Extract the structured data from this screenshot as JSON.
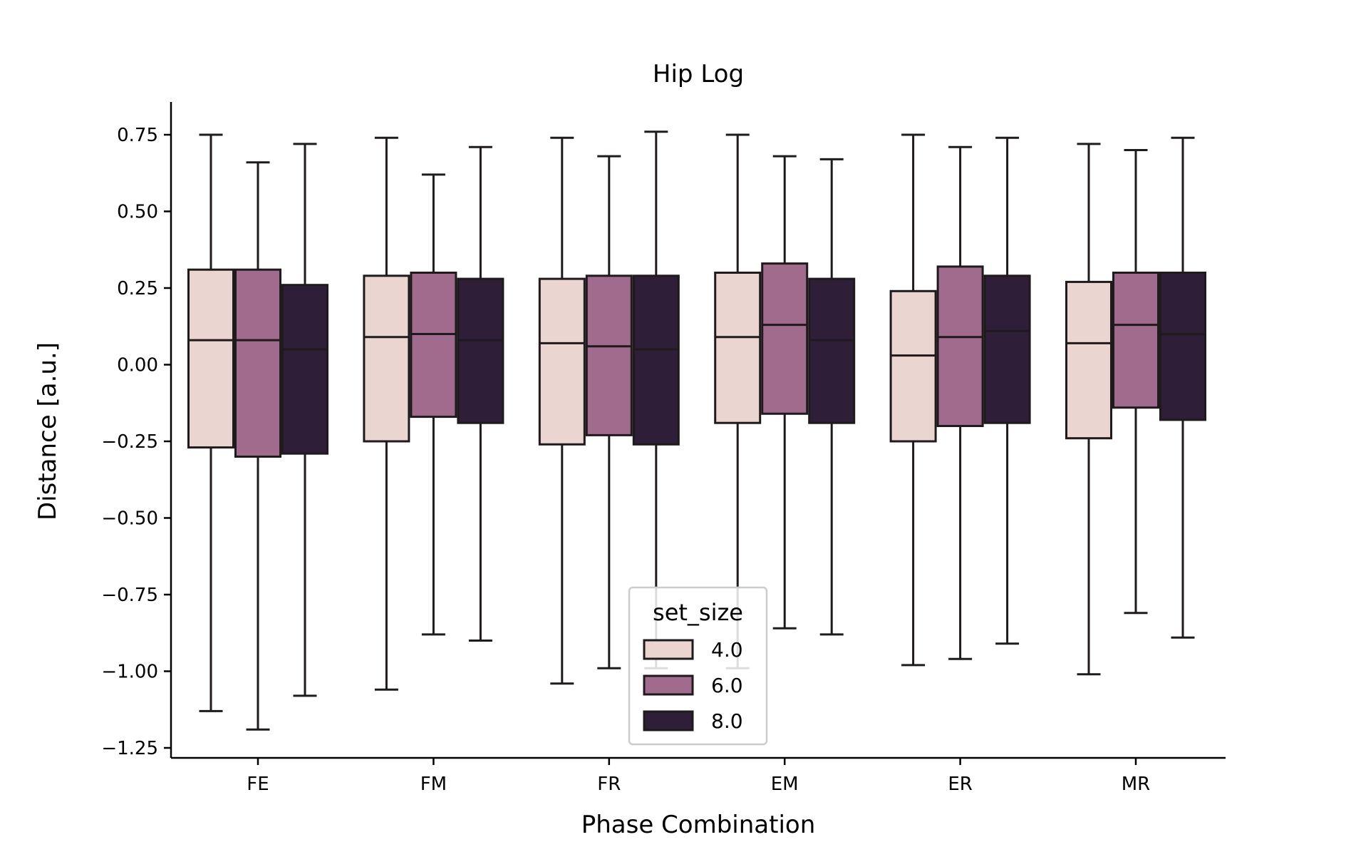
{
  "chart_data": {
    "type": "box",
    "title": "Hip Log",
    "xlabel": "Phase Combination",
    "ylabel": "Distance [a.u.]",
    "ylim": [
      -1.28,
      0.86
    ],
    "yticks": [
      0.75,
      0.5,
      0.25,
      0.0,
      -0.25,
      -0.5,
      -0.75,
      -1.0,
      -1.25
    ],
    "ytick_labels": [
      "0.75",
      "0.50",
      "0.25",
      "0.00",
      "−0.25",
      "−0.50",
      "−0.75",
      "−1.00",
      "−1.25"
    ],
    "categories": [
      "FE",
      "FM",
      "FR",
      "EM",
      "ER",
      "MR"
    ],
    "legend": {
      "title": "set_size",
      "position": "bottom-center"
    },
    "grid": false,
    "series": [
      {
        "name": "4.0",
        "color": "#EBD5D0",
        "boxes": [
          {
            "whisker_low": -1.13,
            "q1": -0.27,
            "median": 0.08,
            "q3": 0.31,
            "whisker_high": 0.75
          },
          {
            "whisker_low": -1.06,
            "q1": -0.25,
            "median": 0.09,
            "q3": 0.29,
            "whisker_high": 0.74
          },
          {
            "whisker_low": -1.04,
            "q1": -0.26,
            "median": 0.07,
            "q3": 0.28,
            "whisker_high": 0.74
          },
          {
            "whisker_low": -0.99,
            "q1": -0.19,
            "median": 0.09,
            "q3": 0.3,
            "whisker_high": 0.75
          },
          {
            "whisker_low": -0.98,
            "q1": -0.25,
            "median": 0.03,
            "q3": 0.24,
            "whisker_high": 0.75
          },
          {
            "whisker_low": -1.01,
            "q1": -0.24,
            "median": 0.07,
            "q3": 0.27,
            "whisker_high": 0.72
          }
        ]
      },
      {
        "name": "6.0",
        "color": "#A06B8C",
        "boxes": [
          {
            "whisker_low": -1.19,
            "q1": -0.3,
            "median": 0.08,
            "q3": 0.31,
            "whisker_high": 0.66
          },
          {
            "whisker_low": -0.88,
            "q1": -0.17,
            "median": 0.1,
            "q3": 0.3,
            "whisker_high": 0.62
          },
          {
            "whisker_low": -0.99,
            "q1": -0.23,
            "median": 0.06,
            "q3": 0.29,
            "whisker_high": 0.68
          },
          {
            "whisker_low": -0.86,
            "q1": -0.16,
            "median": 0.13,
            "q3": 0.33,
            "whisker_high": 0.68
          },
          {
            "whisker_low": -0.96,
            "q1": -0.2,
            "median": 0.09,
            "q3": 0.32,
            "whisker_high": 0.71
          },
          {
            "whisker_low": -0.81,
            "q1": -0.14,
            "median": 0.13,
            "q3": 0.3,
            "whisker_high": 0.7
          }
        ]
      },
      {
        "name": "8.0",
        "color": "#2E1E38",
        "boxes": [
          {
            "whisker_low": -1.08,
            "q1": -0.29,
            "median": 0.05,
            "q3": 0.26,
            "whisker_high": 0.72
          },
          {
            "whisker_low": -0.9,
            "q1": -0.19,
            "median": 0.08,
            "q3": 0.28,
            "whisker_high": 0.71
          },
          {
            "whisker_low": -0.99,
            "q1": -0.26,
            "median": 0.05,
            "q3": 0.29,
            "whisker_high": 0.76
          },
          {
            "whisker_low": -0.88,
            "q1": -0.19,
            "median": 0.08,
            "q3": 0.28,
            "whisker_high": 0.67
          },
          {
            "whisker_low": -0.91,
            "q1": -0.19,
            "median": 0.11,
            "q3": 0.29,
            "whisker_high": 0.74
          },
          {
            "whisker_low": -0.89,
            "q1": -0.18,
            "median": 0.1,
            "q3": 0.3,
            "whisker_high": 0.74
          }
        ]
      }
    ]
  }
}
